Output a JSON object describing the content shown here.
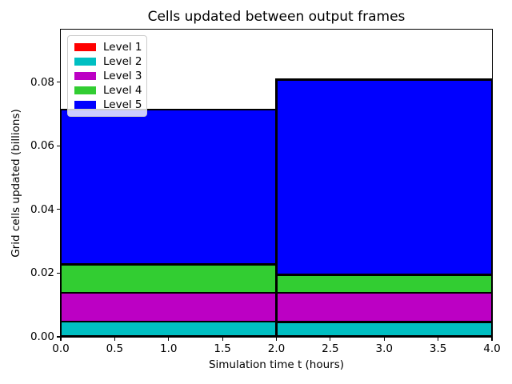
{
  "chart_data": {
    "type": "bar",
    "stacked": true,
    "title": "Cells updated between output frames",
    "xlabel": "Simulation time t (hours)",
    "ylabel": "Grid cells updated (billions)",
    "xlim": [
      0,
      4
    ],
    "ylim": [
      0,
      0.0965
    ],
    "x_tick_values": [
      0.0,
      0.5,
      1.0,
      1.5,
      2.0,
      2.5,
      3.0,
      3.5,
      4.0
    ],
    "x_tick_labels": [
      "0.0",
      "0.5",
      "1.0",
      "1.5",
      "2.0",
      "2.5",
      "3.0",
      "3.5",
      "4.0"
    ],
    "y_tick_values": [
      0.0,
      0.02,
      0.04,
      0.06,
      0.08
    ],
    "y_tick_labels": [
      "0.00",
      "0.02",
      "0.04",
      "0.06",
      "0.08"
    ],
    "bins": [
      [
        0,
        2
      ],
      [
        2,
        4
      ]
    ],
    "series": [
      {
        "name": "Level 1",
        "color": "#ff0000",
        "values": [
          0.0,
          0.0
        ]
      },
      {
        "name": "Level 2",
        "color": "#00bfc2",
        "values": [
          0.0048,
          0.0047
        ]
      },
      {
        "name": "Level 3",
        "color": "#bc00c4",
        "values": [
          0.009,
          0.0091
        ]
      },
      {
        "name": "Level 4",
        "color": "#32cd32",
        "values": [
          0.009,
          0.0057
        ]
      },
      {
        "name": "Level 5",
        "color": "#0000ff",
        "values": [
          0.0486,
          0.0613
        ]
      }
    ],
    "totals": [
      0.0714,
      0.0808
    ],
    "legend_position": "upper left",
    "grid": false,
    "edge_color": "#000000",
    "background_color": "#ffffff"
  }
}
